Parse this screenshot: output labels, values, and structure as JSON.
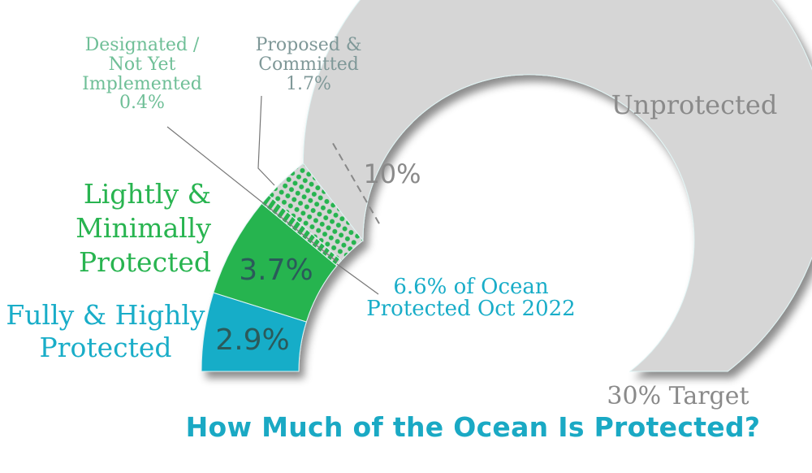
{
  "chart_data": {
    "type": "gauge",
    "title": "How Much of the Ocean Is Protected?",
    "range": [
      0,
      30
    ],
    "target_label": "30% Target",
    "marker": {
      "value": 10,
      "label": "10%"
    },
    "segments": [
      {
        "name": "Fully & Highly Protected",
        "value": 2.9,
        "label": "2.9%",
        "color": "#19adc8",
        "fill": "solid"
      },
      {
        "name": "Lightly & Minimally Protected",
        "value": 3.7,
        "label": "3.7%",
        "color": "#28b450",
        "fill": "solid"
      },
      {
        "name": "Designated / Not Yet Implemented",
        "value": 0.4,
        "label": "0.4%",
        "color": "#28b450",
        "fill": "hatch"
      },
      {
        "name": "Proposed & Committed",
        "value": 1.7,
        "label": "1.7%",
        "color": "#28b450",
        "fill": "dots"
      },
      {
        "name": "Unprotected",
        "value": 21.3,
        "color": "#d6d6d6",
        "fill": "solid"
      }
    ],
    "annotation": "6.6% of Ocean Protected Oct 2022"
  },
  "labels": {
    "fully": [
      "Fully & Highly",
      "Protected"
    ],
    "lightly": [
      "Lightly &",
      "Minimally",
      "Protected"
    ],
    "designated": [
      "Designated /",
      "Not Yet",
      "Implemented",
      "0.4%"
    ],
    "proposed": [
      "Proposed &",
      "Committed",
      "1.7%"
    ],
    "unprotected": "Unprotected",
    "protected_total": [
      "6.6% of Ocean",
      "Protected Oct 2022"
    ]
  }
}
